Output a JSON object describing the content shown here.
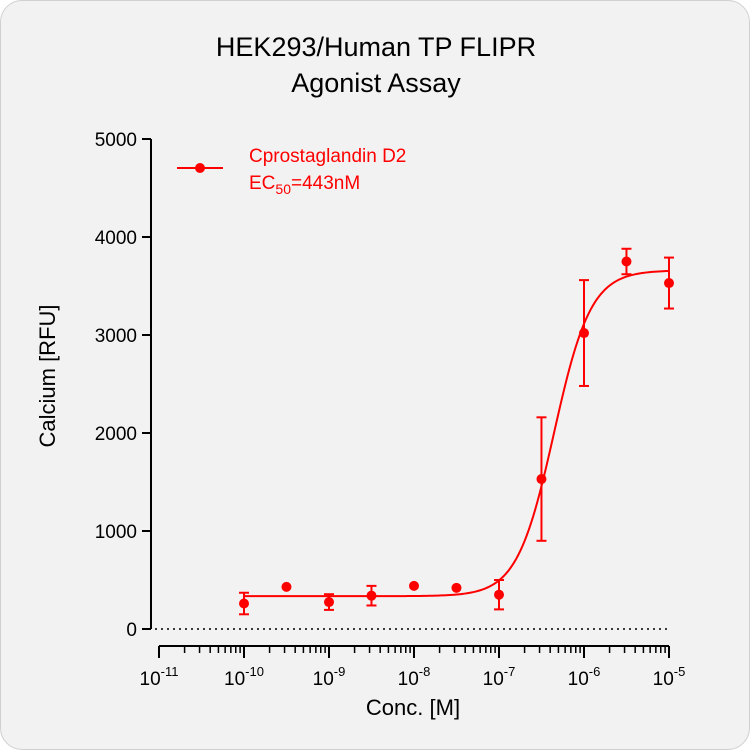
{
  "chart_data": {
    "type": "scatter",
    "title_lines": [
      "HEK293/Human TP FLIPR",
      "Agonist Assay"
    ],
    "xlabel": "Conc. [M]",
    "ylabel": "Calcium [RFU]",
    "x_scale": "log",
    "xlim": [
      1e-11,
      1e-05
    ],
    "ylim": [
      0,
      5000
    ],
    "y_ticks": [
      0,
      1000,
      2000,
      3000,
      4000,
      5000
    ],
    "x_tick_labels": [
      {
        "base": "10",
        "exp": "-11"
      },
      {
        "base": "10",
        "exp": "-10"
      },
      {
        "base": "10",
        "exp": "-9"
      },
      {
        "base": "10",
        "exp": "-8"
      },
      {
        "base": "10",
        "exp": "-7"
      },
      {
        "base": "10",
        "exp": "-6"
      },
      {
        "base": "10",
        "exp": "-5"
      }
    ],
    "baseline_dotted_at": 0,
    "series": [
      {
        "name": "Cprostaglandin D2",
        "ec50_label": {
          "prefix": "EC",
          "sub": "50",
          "suffix": "=443nM"
        },
        "color": "#ff0000",
        "points": [
          {
            "x": 1e-10,
            "y": 260,
            "err": 110
          },
          {
            "x": 3.16e-10,
            "y": 430,
            "err": 0
          },
          {
            "x": 1e-09,
            "y": 275,
            "err": 80
          },
          {
            "x": 3.16e-09,
            "y": 340,
            "err": 100
          },
          {
            "x": 1e-08,
            "y": 440,
            "err": 0
          },
          {
            "x": 3.16e-08,
            "y": 420,
            "err": 0
          },
          {
            "x": 1e-07,
            "y": 350,
            "err": 150
          },
          {
            "x": 3.16e-07,
            "y": 1530,
            "err": 630
          },
          {
            "x": 1e-06,
            "y": 3020,
            "err": 540
          },
          {
            "x": 3.16e-06,
            "y": 3750,
            "err": 130
          },
          {
            "x": 1e-05,
            "y": 3530,
            "err": 260
          }
        ],
        "fit": {
          "bottom": 335,
          "top": 3660,
          "ec50": 4.43e-07,
          "hill": 2.0
        }
      }
    ]
  }
}
